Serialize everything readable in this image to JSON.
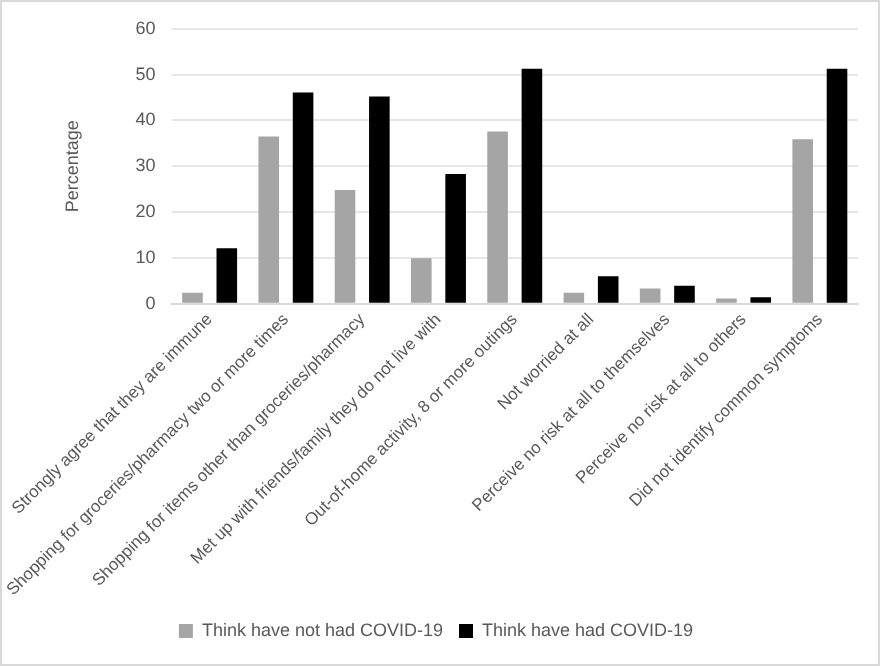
{
  "chart_data": {
    "type": "bar",
    "ylabel": "Percentage",
    "categories": [
      "Strongly agree that they are immune",
      "Shopping for groceries/pharmacy two or more times",
      "Shopping for items other than groceries/pharmacy",
      "Met up with friends/family they do not live with",
      "Out-of-home activity, 8 or more outings",
      "Not worried at all",
      "Perceive no risk at all to themselves",
      "Perceive no risk at all to others",
      "Did not identify common symptoms"
    ],
    "series": [
      {
        "name": "Think have not had COVID-19",
        "color": "#a5a5a5",
        "values": [
          2.4,
          36.5,
          24.8,
          9.9,
          37.6,
          2.4,
          3.3,
          1.1,
          35.9
        ]
      },
      {
        "name": "Think have had COVID-19",
        "color": "#000000",
        "values": [
          12.1,
          46.1,
          45.2,
          28.3,
          51.3,
          6.0,
          3.9,
          1.4,
          51.3
        ]
      }
    ],
    "ylim": [
      0,
      60
    ],
    "yticks": [
      0,
      10,
      20,
      30,
      40,
      50,
      60
    ],
    "grid": "y",
    "legend": "bottom"
  }
}
